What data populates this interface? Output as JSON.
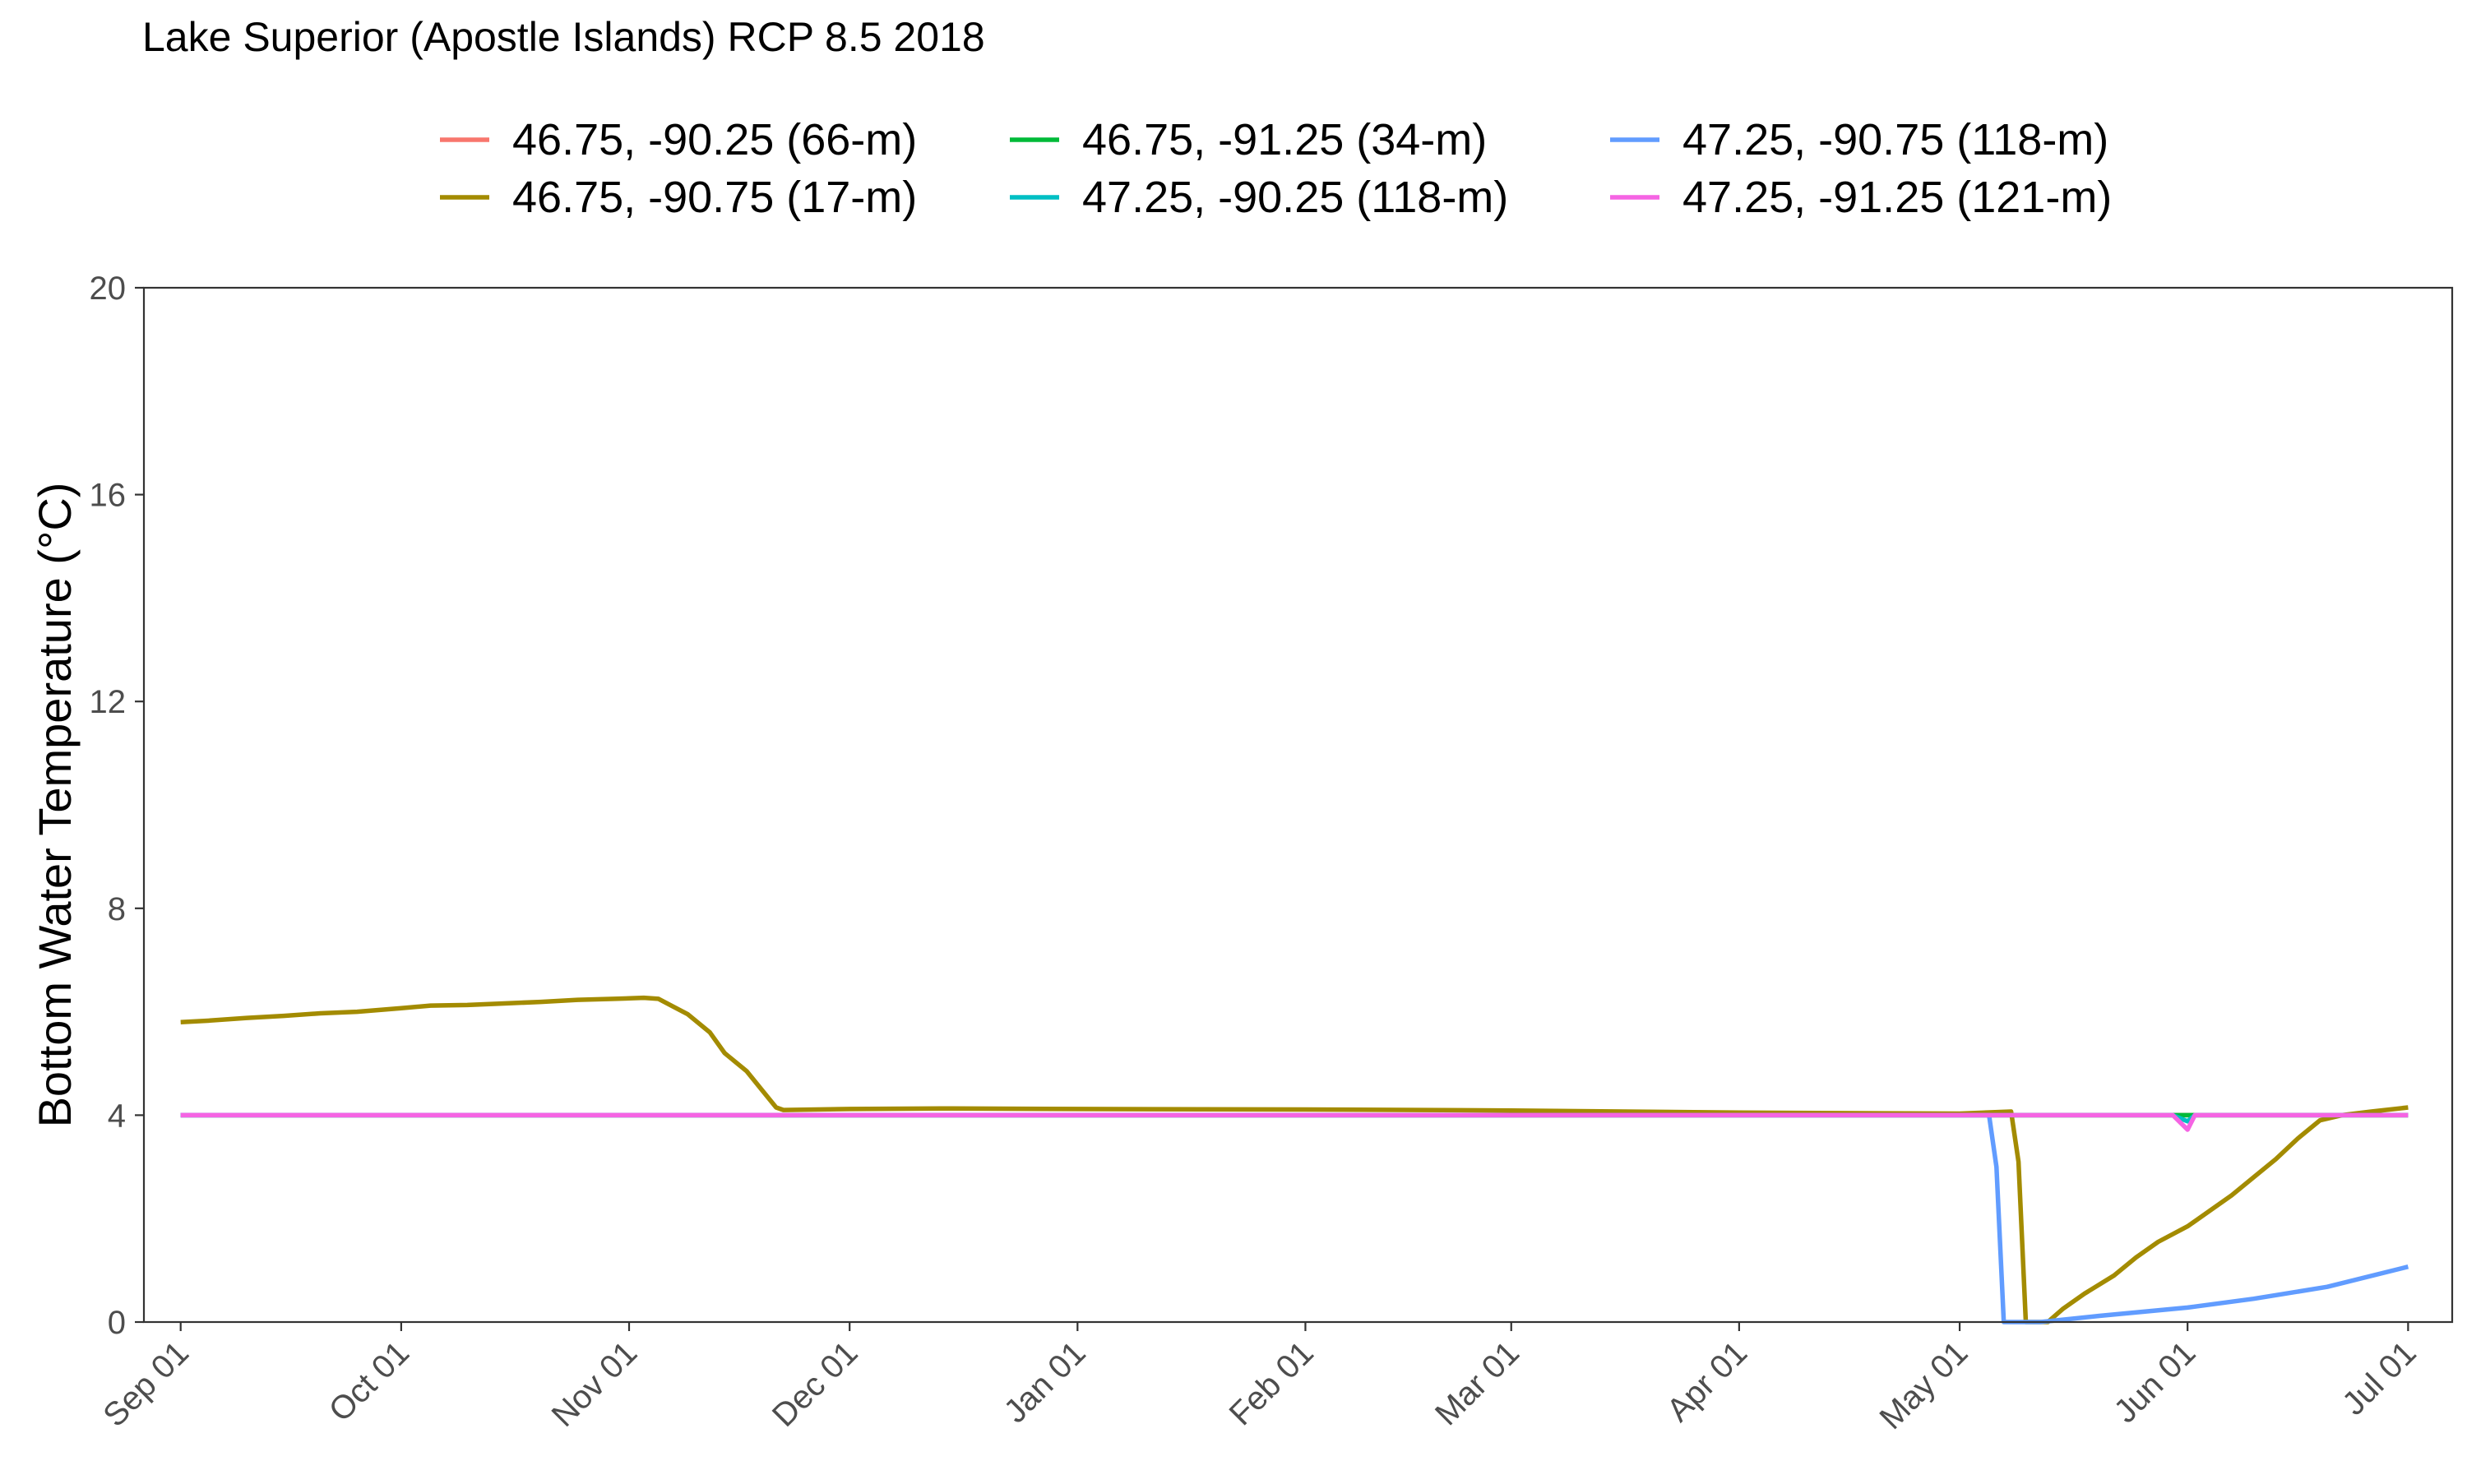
{
  "chart_data": {
    "type": "line",
    "title": "Lake Superior (Apostle Islands) RCP 8.5 2018",
    "xlabel": "",
    "ylabel": "Bottom Water Temperature (°C)",
    "ylim": [
      0,
      20
    ],
    "yticks": [
      0,
      4,
      8,
      12,
      16,
      20
    ],
    "x_is_date": true,
    "xlim": [
      "2018-08-27",
      "2019-07-07"
    ],
    "xticks": [
      {
        "date": "2018-09-01",
        "label": "Sep 01"
      },
      {
        "date": "2018-10-01",
        "label": "Oct 01"
      },
      {
        "date": "2018-11-01",
        "label": "Nov 01"
      },
      {
        "date": "2018-12-01",
        "label": "Dec 01"
      },
      {
        "date": "2019-01-01",
        "label": "Jan 01"
      },
      {
        "date": "2019-02-01",
        "label": "Feb 01"
      },
      {
        "date": "2019-03-01",
        "label": "Mar 01"
      },
      {
        "date": "2019-04-01",
        "label": "Apr 01"
      },
      {
        "date": "2019-05-01",
        "label": "May 01"
      },
      {
        "date": "2019-06-01",
        "label": "Jun 01"
      },
      {
        "date": "2019-07-01",
        "label": "Jul 01"
      }
    ],
    "grid": false,
    "legend_position": "top",
    "series": [
      {
        "name": "46.75, -90.25 (66-m)",
        "color": "#F8766D",
        "points": [
          [
            "2018-09-01",
            4.0
          ],
          [
            "2019-07-01",
            4.0
          ]
        ]
      },
      {
        "name": "46.75, -90.75 (17-m)",
        "color": "#A38B00",
        "points": [
          [
            "2018-09-01",
            5.8
          ],
          [
            "2018-09-05",
            5.83
          ],
          [
            "2018-09-10",
            5.88
          ],
          [
            "2018-09-15",
            5.92
          ],
          [
            "2018-09-20",
            5.97
          ],
          [
            "2018-09-25",
            6.0
          ],
          [
            "2018-10-01",
            6.07
          ],
          [
            "2018-10-05",
            6.12
          ],
          [
            "2018-10-10",
            6.13
          ],
          [
            "2018-10-15",
            6.16
          ],
          [
            "2018-10-20",
            6.19
          ],
          [
            "2018-10-25",
            6.23
          ],
          [
            "2018-10-30",
            6.25
          ],
          [
            "2018-11-03",
            6.27
          ],
          [
            "2018-11-05",
            6.25
          ],
          [
            "2018-11-07",
            6.1
          ],
          [
            "2018-11-09",
            5.95
          ],
          [
            "2018-11-12",
            5.6
          ],
          [
            "2018-11-14",
            5.2
          ],
          [
            "2018-11-17",
            4.85
          ],
          [
            "2018-11-19",
            4.5
          ],
          [
            "2018-11-21",
            4.15
          ],
          [
            "2018-11-22",
            4.1
          ],
          [
            "2018-12-01",
            4.12
          ],
          [
            "2018-12-15",
            4.13
          ],
          [
            "2019-01-01",
            4.12
          ],
          [
            "2019-02-01",
            4.11
          ],
          [
            "2019-03-01",
            4.09
          ],
          [
            "2019-04-01",
            4.05
          ],
          [
            "2019-05-01",
            4.03
          ],
          [
            "2019-05-08",
            4.07
          ],
          [
            "2019-05-09",
            3.1
          ],
          [
            "2019-05-10",
            0.0
          ],
          [
            "2019-05-13",
            0.0
          ],
          [
            "2019-05-15",
            0.25
          ],
          [
            "2019-05-18",
            0.55
          ],
          [
            "2019-05-22",
            0.9
          ],
          [
            "2019-05-25",
            1.25
          ],
          [
            "2019-05-28",
            1.55
          ],
          [
            "2019-06-01",
            1.85
          ],
          [
            "2019-06-04",
            2.15
          ],
          [
            "2019-06-07",
            2.45
          ],
          [
            "2019-06-10",
            2.8
          ],
          [
            "2019-06-13",
            3.15
          ],
          [
            "2019-06-16",
            3.55
          ],
          [
            "2019-06-19",
            3.9
          ],
          [
            "2019-06-22",
            4.0
          ],
          [
            "2019-06-26",
            4.07
          ],
          [
            "2019-07-01",
            4.15
          ]
        ]
      },
      {
        "name": "46.75, -91.25 (34-m)",
        "color": "#00BA38",
        "points": [
          [
            "2018-09-01",
            4.0
          ],
          [
            "2019-07-01",
            4.0
          ]
        ]
      },
      {
        "name": "47.25, -90.25 (118-m)",
        "color": "#00BFC4",
        "points": [
          [
            "2018-09-01",
            4.0
          ],
          [
            "2019-05-30",
            4.0
          ],
          [
            "2019-06-01",
            3.88
          ],
          [
            "2019-06-02",
            4.0
          ],
          [
            "2019-07-01",
            4.0
          ]
        ]
      },
      {
        "name": "47.25, -90.75 (118-m)",
        "color": "#619CFF",
        "points": [
          [
            "2018-09-01",
            4.0
          ],
          [
            "2019-05-05",
            4.0
          ],
          [
            "2019-05-06",
            3.0
          ],
          [
            "2019-05-07",
            0.0
          ],
          [
            "2019-05-12",
            0.0
          ],
          [
            "2019-05-20",
            0.12
          ],
          [
            "2019-06-01",
            0.28
          ],
          [
            "2019-06-10",
            0.45
          ],
          [
            "2019-06-20",
            0.68
          ],
          [
            "2019-07-01",
            1.07
          ]
        ]
      },
      {
        "name": "47.25, -91.25 (121-m)",
        "color": "#F564E3",
        "points": [
          [
            "2018-09-01",
            4.0
          ],
          [
            "2019-05-30",
            4.0
          ],
          [
            "2019-06-01",
            3.72
          ],
          [
            "2019-06-02",
            4.0
          ],
          [
            "2019-07-01",
            4.0
          ]
        ]
      }
    ]
  }
}
